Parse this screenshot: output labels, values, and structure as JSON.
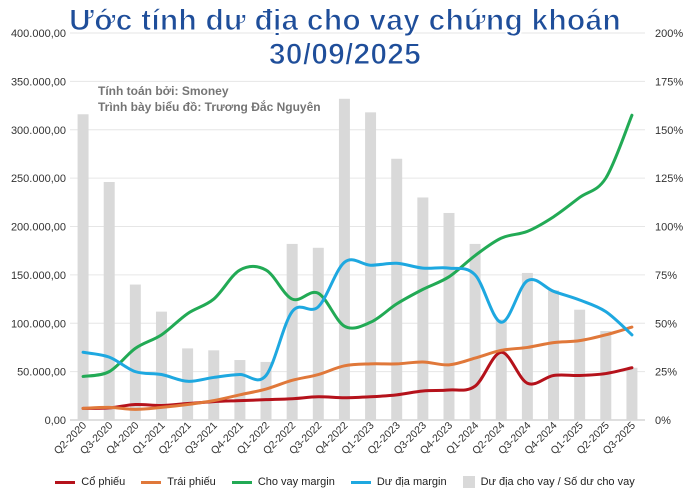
{
  "title_line1": "Ước tính dư địa cho vay chứng khoán",
  "title_line2": "30/09/2025",
  "note_line1": "Tính toán bởi: Smoney",
  "note_line2": "Trình bày biểu đồ: Trương Đắc Nguyên",
  "colors": {
    "co_phieu": "#b5121b",
    "trai_phieu": "#e0783a",
    "cho_vay_margin": "#22aa55",
    "du_dia_margin": "#1ea8e0",
    "bars": "#d9d9d9",
    "title": "#1f4e9a"
  },
  "chart_data": {
    "type": "bar+line",
    "title": "Ước tính dư địa cho vay chứng khoán 30/09/2025",
    "categories": [
      "Q2-2020",
      "Q3-2020",
      "Q4-2020",
      "Q1-2021",
      "Q2-2021",
      "Q3-2021",
      "Q4-2021",
      "Q1-2022",
      "Q2-2022",
      "Q3-2022",
      "Q4-2022",
      "Q1-2023",
      "Q2-2023",
      "Q3-2023",
      "Q4-2023",
      "Q1-2024",
      "Q2-2024",
      "Q3-2024",
      "Q4-2024",
      "Q1-2025",
      "Q2-2025",
      "Q3-2025"
    ],
    "left_axis": {
      "ylim": [
        0,
        400000
      ],
      "ticks": [
        "0,00",
        "50.000,00",
        "100.000,00",
        "150.000,00",
        "200.000,00",
        "250.000,00",
        "300.000,00",
        "350.000,00",
        "400.000,00"
      ]
    },
    "right_axis": {
      "ylim": [
        0,
        200
      ],
      "ticks": [
        "0%",
        "25%",
        "50%",
        "75%",
        "100%",
        "125%",
        "150%",
        "175%",
        "200%"
      ]
    },
    "bar_series": {
      "name": "Dư địa cho vay / Số dư cho vay",
      "axis": "right",
      "values": [
        158,
        123,
        70,
        56,
        37,
        36,
        31,
        30,
        91,
        89,
        166,
        159,
        135,
        115,
        107,
        91,
        52,
        76,
        67,
        57,
        46,
        27
      ]
    },
    "line_series": [
      {
        "name": "Cổ phiếu",
        "axis": "left",
        "color_key": "co_phieu",
        "values": [
          12000,
          12500,
          16000,
          15000,
          17000,
          19000,
          20000,
          21000,
          22000,
          24000,
          23000,
          24000,
          26000,
          30000,
          31000,
          35000,
          70000,
          38000,
          46000,
          46000,
          48000,
          54000
        ]
      },
      {
        "name": "Trái phiếu",
        "axis": "left",
        "color_key": "trai_phieu",
        "values": [
          12000,
          13000,
          11000,
          13000,
          16000,
          20000,
          26000,
          32000,
          41000,
          47000,
          56000,
          58000,
          58000,
          60000,
          57000,
          64000,
          72000,
          75000,
          80000,
          82000,
          88000,
          96000
        ]
      },
      {
        "name": "Cho vay margin",
        "axis": "left",
        "color_key": "cho_vay_margin",
        "values": [
          45000,
          50000,
          74000,
          88000,
          110000,
          125000,
          155000,
          155000,
          125000,
          131000,
          97000,
          101000,
          120000,
          135000,
          148000,
          170000,
          188000,
          195000,
          210000,
          230000,
          250000,
          315000
        ]
      },
      {
        "name": "Dư địa margin",
        "axis": "left",
        "color_key": "du_dia_margin",
        "values": [
          70000,
          65000,
          50000,
          47000,
          40000,
          44000,
          47000,
          46000,
          112000,
          117000,
          163000,
          160000,
          162000,
          157000,
          157000,
          150000,
          101000,
          144000,
          133000,
          124000,
          112000,
          88000
        ]
      }
    ],
    "legend_position": "bottom",
    "grid": true
  }
}
